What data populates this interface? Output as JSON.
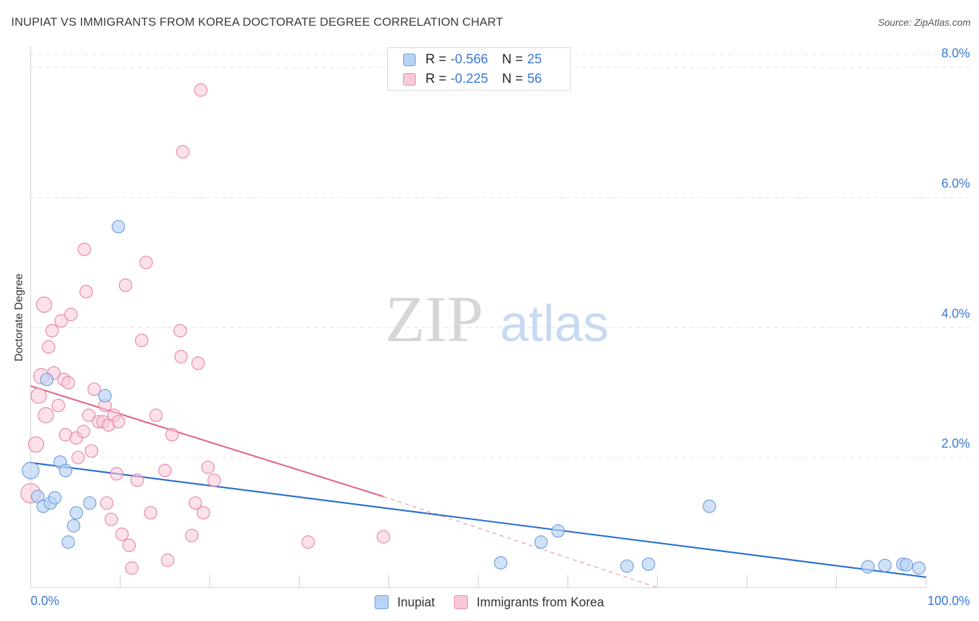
{
  "colors": {
    "inupiat_fill": "#b8d3f5",
    "inupiat_stroke": "#6f9fdc",
    "inupiat_line": "#2a6fd0",
    "korea_fill": "#f9c9d8",
    "korea_stroke": "#e58aa8",
    "korea_line": "#e06890",
    "axis_label": "#3a78d4",
    "grid": "#e2e2e2"
  },
  "header": {
    "title": "INUPIAT VS IMMIGRANTS FROM KOREA DOCTORATE DEGREE CORRELATION CHART",
    "source": "Source: ZipAtlas.com"
  },
  "watermark": {
    "zip": "ZIP",
    "atlas": "atlas"
  },
  "legend_top": {
    "rows": [
      {
        "r_label": "R =",
        "r_value": "-0.566",
        "n_label": "N =",
        "n_value": "25"
      },
      {
        "r_label": "R =",
        "r_value": "-0.225",
        "n_label": "N =",
        "n_value": "56"
      }
    ]
  },
  "legend_bottom": {
    "items": [
      "Inupiat",
      "Immigrants from Korea"
    ]
  },
  "chart_data": {
    "type": "scatter",
    "title": "INUPIAT VS IMMIGRANTS FROM KOREA DOCTORATE DEGREE CORRELATION CHART",
    "xlabel": "",
    "ylabel": "Doctorate Degree",
    "xlim": [
      0,
      100
    ],
    "ylim": [
      0,
      8.2
    ],
    "x_tick_labels": [
      "0.0%",
      "100.0%"
    ],
    "y_ticks": [
      2,
      4,
      6,
      8
    ],
    "y_tick_labels": [
      "2.0%",
      "4.0%",
      "6.0%",
      "8.0%"
    ],
    "series": [
      {
        "name": "Inupiat",
        "r": -0.566,
        "n": 25,
        "points": [
          [
            0.0,
            1.8
          ],
          [
            0.8,
            1.4
          ],
          [
            1.4,
            1.25
          ],
          [
            1.8,
            3.2
          ],
          [
            2.2,
            1.3
          ],
          [
            2.7,
            1.38
          ],
          [
            3.3,
            1.93
          ],
          [
            3.9,
            1.8
          ],
          [
            4.2,
            0.7
          ],
          [
            4.8,
            0.95
          ],
          [
            5.1,
            1.15
          ],
          [
            6.6,
            1.3
          ],
          [
            8.3,
            2.95
          ],
          [
            9.8,
            5.55
          ],
          [
            52.5,
            0.38
          ],
          [
            57.0,
            0.7
          ],
          [
            58.9,
            0.87
          ],
          [
            66.6,
            0.33
          ],
          [
            69.0,
            0.36
          ],
          [
            75.8,
            1.25
          ],
          [
            93.5,
            0.32
          ],
          [
            95.4,
            0.34
          ],
          [
            97.4,
            0.36
          ],
          [
            97.8,
            0.35
          ],
          [
            99.2,
            0.3
          ]
        ],
        "trend": {
          "x0": 0,
          "y0": 1.92,
          "x1": 100,
          "y1": 0.16
        }
      },
      {
        "name": "Immigrants from Korea",
        "r": -0.225,
        "n": 56,
        "points": [
          [
            0.0,
            1.45
          ],
          [
            0.6,
            2.2
          ],
          [
            0.9,
            2.95
          ],
          [
            1.2,
            3.25
          ],
          [
            1.5,
            4.35
          ],
          [
            1.7,
            2.65
          ],
          [
            2.0,
            3.7
          ],
          [
            2.4,
            3.95
          ],
          [
            2.6,
            3.3
          ],
          [
            3.1,
            2.8
          ],
          [
            3.4,
            4.1
          ],
          [
            3.7,
            3.2
          ],
          [
            3.9,
            2.35
          ],
          [
            4.2,
            3.15
          ],
          [
            4.5,
            4.2
          ],
          [
            5.1,
            2.3
          ],
          [
            5.3,
            2.0
          ],
          [
            5.9,
            2.4
          ],
          [
            6.0,
            5.2
          ],
          [
            6.2,
            4.55
          ],
          [
            6.5,
            2.65
          ],
          [
            6.8,
            2.1
          ],
          [
            7.1,
            3.05
          ],
          [
            7.6,
            2.55
          ],
          [
            8.1,
            2.55
          ],
          [
            8.3,
            2.8
          ],
          [
            8.5,
            1.3
          ],
          [
            8.7,
            2.5
          ],
          [
            9.0,
            1.05
          ],
          [
            9.3,
            2.65
          ],
          [
            9.6,
            1.75
          ],
          [
            9.8,
            2.55
          ],
          [
            10.2,
            0.82
          ],
          [
            10.6,
            4.65
          ],
          [
            11.0,
            0.65
          ],
          [
            11.3,
            0.3
          ],
          [
            11.9,
            1.65
          ],
          [
            12.4,
            3.8
          ],
          [
            12.9,
            5.0
          ],
          [
            13.4,
            1.15
          ],
          [
            14.0,
            2.65
          ],
          [
            15.0,
            1.8
          ],
          [
            15.3,
            0.42
          ],
          [
            15.8,
            2.35
          ],
          [
            16.7,
            3.95
          ],
          [
            16.8,
            3.55
          ],
          [
            17.0,
            6.7
          ],
          [
            18.0,
            0.8
          ],
          [
            18.4,
            1.3
          ],
          [
            18.7,
            3.45
          ],
          [
            19.3,
            1.15
          ],
          [
            19.0,
            7.65
          ],
          [
            19.8,
            1.85
          ],
          [
            20.5,
            1.65
          ],
          [
            31.0,
            0.7
          ],
          [
            39.4,
            0.78
          ]
        ],
        "trend": {
          "x0": 0,
          "y0": 3.1,
          "x1": 39.4,
          "y1": 1.4
        },
        "trend_extension": {
          "x0": 39.4,
          "y0": 1.4,
          "x1": 70,
          "y1": 0.0
        }
      }
    ]
  }
}
